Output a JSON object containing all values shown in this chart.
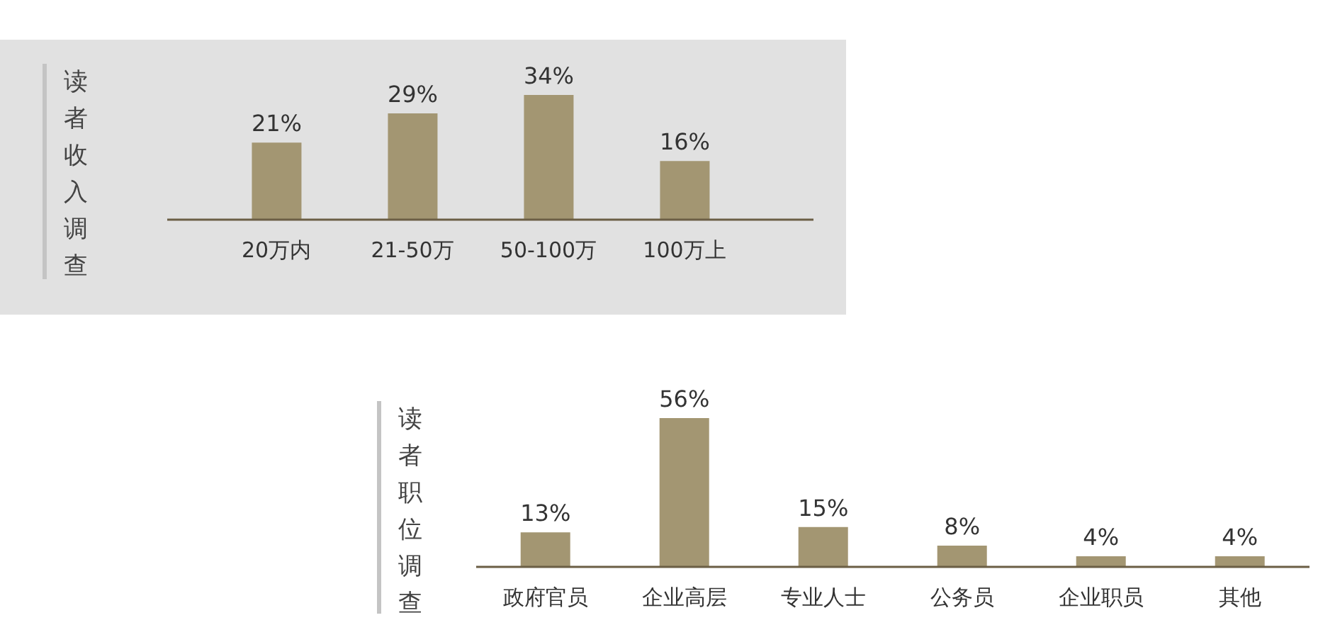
{
  "chart_data": [
    {
      "type": "bar",
      "title": "读者收入调查",
      "categories": [
        "20万内",
        "21-50万",
        "50-100万",
        "100万上"
      ],
      "values": [
        21,
        29,
        34,
        16
      ],
      "value_labels": [
        "21%",
        "29%",
        "34%",
        "16%"
      ],
      "color": "#a39672"
    },
    {
      "type": "bar",
      "title": "读者职位调查",
      "categories": [
        "政府官员",
        "企业高层",
        "专业人士",
        "公务员",
        "企业职员",
        "其他"
      ],
      "values": [
        13,
        56,
        15,
        8,
        4,
        4
      ],
      "value_labels": [
        "13%",
        "56%",
        "15%",
        "8%",
        "4%",
        "4%"
      ],
      "color": "#a39672"
    }
  ]
}
